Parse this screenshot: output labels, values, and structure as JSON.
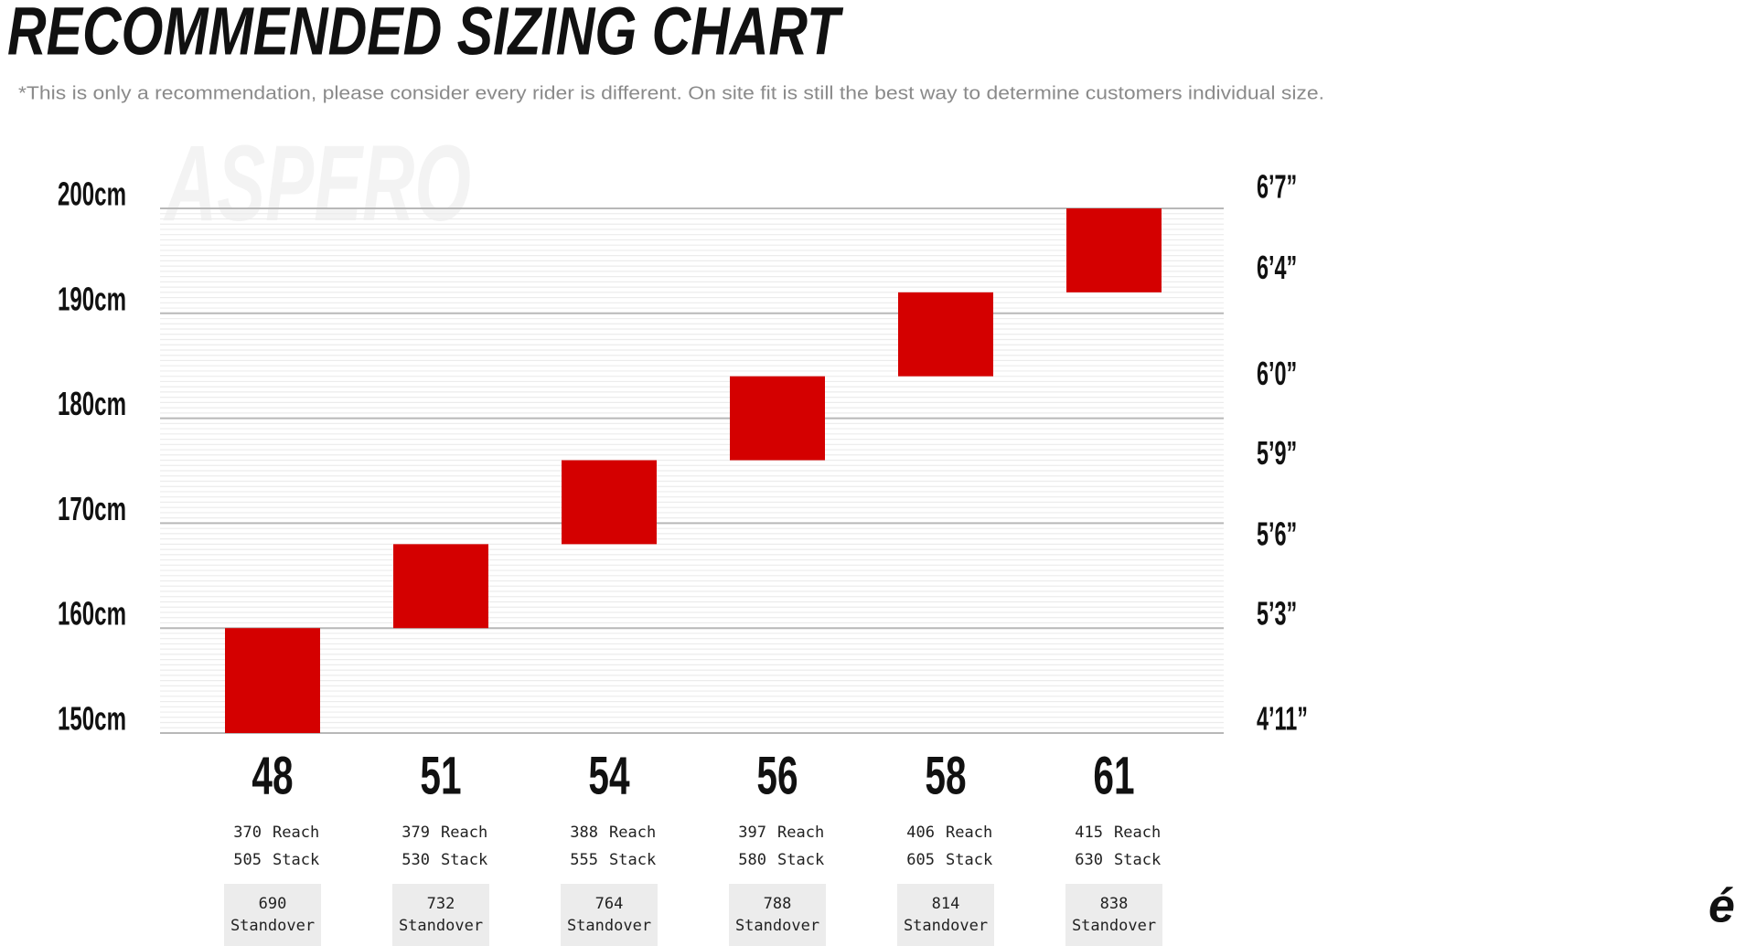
{
  "chart_data": {
    "type": "range-bar",
    "title": "RECOMMENDED SIZING CHART",
    "subtitle": "*This is only a recommendation, please consider every rider is different. On site fit is still the best way to determine customers individual size.",
    "watermark": "ASPERO",
    "logo": "é",
    "categories": [
      "48",
      "51",
      "54",
      "56",
      "58",
      "61"
    ],
    "low": [
      150,
      160,
      168,
      176,
      184,
      192
    ],
    "high": [
      160,
      168,
      176,
      184,
      192,
      200
    ],
    "color": "#d40000",
    "ylim": [
      150,
      200
    ],
    "yticks": [
      {
        "value": 150,
        "label": "150cm"
      },
      {
        "value": 160,
        "label": "160cm"
      },
      {
        "value": 170,
        "label": "170cm"
      },
      {
        "value": 180,
        "label": "180cm"
      },
      {
        "value": 190,
        "label": "190cm"
      },
      {
        "value": 200,
        "label": "200cm"
      }
    ],
    "y2lim": [
      150,
      200
    ],
    "y2ticks": [
      {
        "value": 150,
        "label": "4’11”"
      },
      {
        "value": 160,
        "label": "5’3”"
      },
      {
        "value": 167.6,
        "label": "5’6”"
      },
      {
        "value": 175.3,
        "label": "5’9”"
      },
      {
        "value": 182.9,
        "label": "6’0”"
      },
      {
        "value": 193,
        "label": "6’4”"
      },
      {
        "value": 200.7,
        "label": "6’7”"
      }
    ],
    "grid": true,
    "minor_grid": true,
    "reach": [
      370,
      379,
      388,
      397,
      406,
      415
    ],
    "reach_label": "Reach",
    "stack": [
      505,
      530,
      555,
      580,
      605,
      630
    ],
    "stack_label": "Stack",
    "standover": [
      690,
      732,
      764,
      788,
      814,
      838
    ],
    "standover_label": "Standover"
  }
}
